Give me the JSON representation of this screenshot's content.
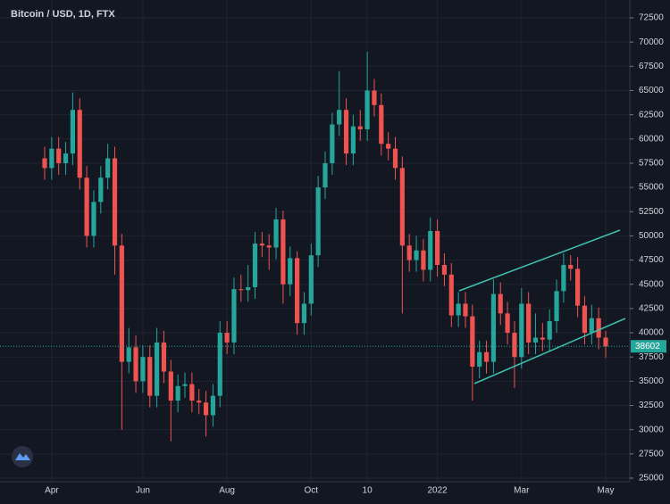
{
  "chart_data": {
    "type": "candlestick",
    "title": "Bitcoin / USD, 1D, FTX",
    "categories": [
      null,
      "Apr",
      null,
      null,
      null,
      null,
      null,
      null,
      null,
      null,
      null,
      null,
      null,
      null,
      "Jun",
      null,
      null,
      null,
      null,
      null,
      null,
      null,
      null,
      null,
      null,
      null,
      "Aug",
      null,
      null,
      null,
      null,
      null,
      null,
      null,
      null,
      null,
      null,
      null,
      "Oct",
      null,
      null,
      null,
      null,
      null,
      null,
      null,
      "10",
      null,
      null,
      null,
      null,
      null,
      null,
      null,
      null,
      null,
      "2022",
      null,
      null,
      null,
      null,
      null,
      null,
      null,
      null,
      null,
      null,
      null,
      "Mar",
      null,
      null,
      null,
      null,
      null,
      null,
      null,
      null,
      null,
      null,
      null,
      "May"
    ],
    "open": [
      58000,
      57000,
      59000,
      57500,
      58500,
      63000,
      56000,
      50000,
      53500,
      56000,
      58000,
      49000,
      37000,
      38500,
      35000,
      37500,
      33500,
      39000,
      36000,
      33000,
      34500,
      34700,
      33000,
      32800,
      31500,
      33500,
      40000,
      39000,
      44500,
      44400,
      44700,
      49200,
      49000,
      48800,
      51700,
      45000,
      47700,
      41000,
      43000,
      48000,
      55000,
      57500,
      61500,
      63000,
      58500,
      61300,
      61000,
      65000,
      63500,
      59500,
      59000,
      57000,
      49000,
      47500,
      48500,
      46500,
      50500,
      47000,
      46000,
      41800,
      43000,
      41700,
      36500,
      38000,
      37000,
      44000,
      42000,
      40000,
      37500,
      43000,
      39000,
      39500,
      39300,
      41200,
      44300,
      47000,
      46600,
      42800,
      40000,
      41500,
      39500
    ],
    "high": [
      59200,
      60200,
      60200,
      59700,
      64800,
      64200,
      57200,
      54700,
      57200,
      59500,
      59200,
      50200,
      40500,
      39700,
      38700,
      38700,
      40500,
      40200,
      37200,
      35700,
      35900,
      35900,
      34200,
      34000,
      34700,
      41200,
      41200,
      45700,
      46000,
      47000,
      50400,
      50400,
      50200,
      52900,
      52600,
      48900,
      48400,
      44200,
      49200,
      56200,
      58700,
      62700,
      67000,
      64200,
      62500,
      63000,
      69000,
      66200,
      64700,
      60700,
      60200,
      58200,
      50200,
      50000,
      49700,
      51900,
      51700,
      48200,
      47200,
      44200,
      44200,
      42900,
      39200,
      39200,
      45500,
      45200,
      43200,
      41200,
      44600,
      44200,
      42000,
      41000,
      42400,
      45500,
      48200,
      48000,
      47800,
      43800,
      42900,
      42600,
      40200
    ],
    "low": [
      55800,
      55800,
      56300,
      56300,
      57300,
      54800,
      48800,
      48800,
      52300,
      54800,
      46000,
      30000,
      35800,
      33800,
      33800,
      32300,
      32300,
      34800,
      28800,
      31800,
      33300,
      31800,
      31600,
      29300,
      30300,
      32300,
      37800,
      37800,
      43200,
      43200,
      43500,
      47800,
      46500,
      47600,
      43000,
      43800,
      39800,
      39800,
      41800,
      46800,
      53800,
      56300,
      60300,
      57300,
      57300,
      59800,
      59800,
      62300,
      58300,
      57800,
      55800,
      42000,
      46300,
      46300,
      45300,
      45300,
      45800,
      44800,
      40600,
      40600,
      40500,
      33000,
      35300,
      35800,
      35800,
      40800,
      38800,
      34300,
      36300,
      37800,
      37800,
      38100,
      38100,
      40000,
      43100,
      45400,
      41600,
      38800,
      38800,
      38300,
      37400
    ],
    "close": [
      57000,
      59000,
      57500,
      58500,
      63000,
      56000,
      50000,
      53500,
      56000,
      58000,
      49000,
      37000,
      38500,
      35000,
      37500,
      33500,
      39000,
      36000,
      33000,
      34500,
      34700,
      33000,
      32800,
      31500,
      33500,
      40000,
      39000,
      44500,
      44400,
      44700,
      49200,
      49000,
      48800,
      51700,
      45000,
      47700,
      41000,
      43000,
      48000,
      55000,
      57500,
      61500,
      63000,
      58500,
      61300,
      61000,
      65000,
      63500,
      59500,
      59000,
      57000,
      49000,
      47500,
      48500,
      46500,
      50500,
      47000,
      46000,
      41800,
      43000,
      41700,
      36500,
      38000,
      37000,
      44000,
      42000,
      40000,
      37500,
      43000,
      39000,
      39500,
      39300,
      41200,
      44300,
      47000,
      46600,
      42800,
      40000,
      41500,
      39500,
      38600
    ],
    "up_color": "#26a69a",
    "down_color": "#ef5350",
    "last_price": 38602,
    "ylim": [
      25000,
      72500
    ],
    "yticks": [
      25000,
      27500,
      30000,
      32500,
      35000,
      37500,
      40000,
      42500,
      45000,
      47500,
      50000,
      52500,
      55000,
      57500,
      60000,
      62500,
      65000,
      67500,
      70000,
      72500
    ],
    "grid": true
  }
}
